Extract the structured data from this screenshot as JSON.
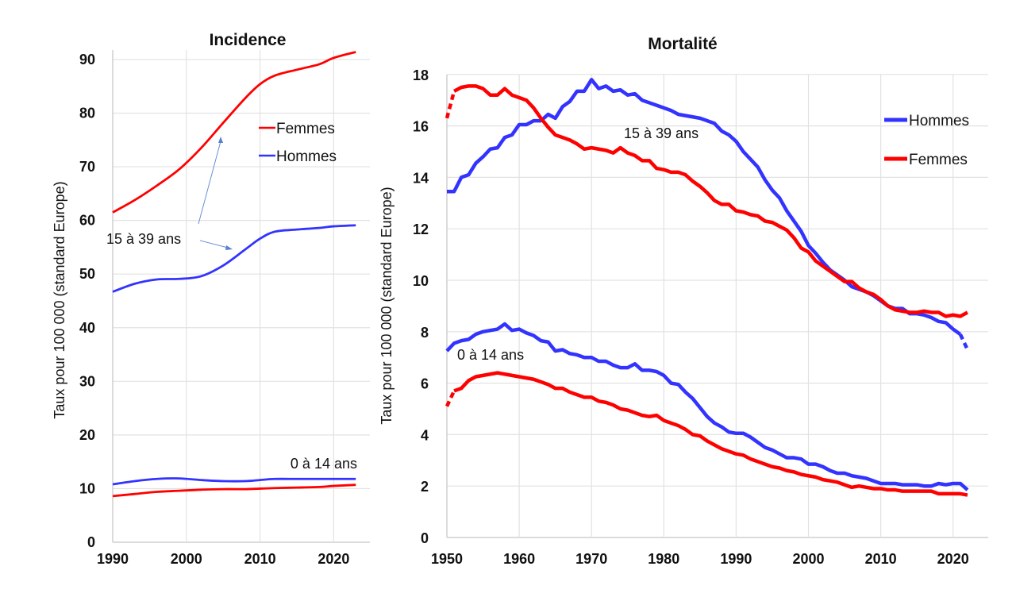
{
  "chart_data": [
    {
      "type": "line",
      "title": "Incidence",
      "xlabel": "",
      "ylabel": "Taux pour 100 000 (standard Europe)",
      "xlim": [
        1990,
        2025
      ],
      "ylim": [
        0,
        90
      ],
      "x_ticks": [
        "1990",
        "2000",
        "2010",
        "2020"
      ],
      "y_ticks": [
        "0",
        "10",
        "20",
        "30",
        "40",
        "50",
        "60",
        "70",
        "80",
        "90"
      ],
      "grid": true,
      "legend": {
        "placement": "top-center",
        "entries": [
          {
            "label": "Femmes",
            "color": "#ff0000"
          },
          {
            "label": "Hommes",
            "color": "#3333ff"
          }
        ]
      },
      "annotations": [
        "15 à 39 ans",
        "0 à 14 ans"
      ],
      "x": [
        1990,
        1993,
        1996,
        1999,
        2002,
        2005,
        2008,
        2010,
        2012,
        2015,
        2018,
        2020,
        2023
      ],
      "series": [
        {
          "name": "Femmes 15 à 39 ans",
          "color": "#ff0000",
          "values": [
            61.5,
            63.8,
            66.5,
            69.5,
            73.5,
            78.2,
            82.8,
            85.4,
            87.0,
            88.1,
            89.1,
            90.3,
            91.4
          ]
        },
        {
          "name": "Hommes 15 à 39 ans",
          "color": "#3333ff",
          "values": [
            46.7,
            48.2,
            49.0,
            49.1,
            49.6,
            51.6,
            54.6,
            56.6,
            57.9,
            58.3,
            58.6,
            58.9,
            59.1
          ]
        },
        {
          "name": "Hommes 0 à 14 ans",
          "color": "#3333ff",
          "values": [
            10.8,
            11.4,
            11.8,
            11.9,
            11.6,
            11.4,
            11.4,
            11.6,
            11.8,
            11.8,
            11.8,
            11.8,
            11.8
          ]
        },
        {
          "name": "Femmes 0 à 14 ans",
          "color": "#ff0000",
          "values": [
            8.6,
            9.0,
            9.4,
            9.6,
            9.8,
            9.9,
            9.9,
            10.0,
            10.1,
            10.2,
            10.3,
            10.5,
            10.7
          ]
        }
      ]
    },
    {
      "type": "line",
      "title": "Mortalité",
      "xlabel": "",
      "ylabel": "Taux pour 100 000 (standard Europe)",
      "xlim": [
        1950,
        2025
      ],
      "ylim": [
        0,
        18
      ],
      "x_ticks": [
        "1950",
        "1960",
        "1970",
        "1980",
        "1990",
        "2000",
        "2010",
        "2020"
      ],
      "y_ticks": [
        "0",
        "2",
        "4",
        "6",
        "8",
        "10",
        "12",
        "14",
        "16",
        "18"
      ],
      "grid": true,
      "legend": {
        "placement": "top-right",
        "entries": [
          {
            "label": "Hommes",
            "color": "#3333ff"
          },
          {
            "label": "Femmes",
            "color": "#ff0000"
          }
        ]
      },
      "annotations": [
        "15 à 39 ans",
        "0 à 14 ans"
      ],
      "x_start": 1950,
      "series": [
        {
          "name": "Hommes 15 à 39 ans",
          "color": "#3333ff",
          "dashed_last": true,
          "values": [
            13.45,
            13.45,
            14.0,
            14.1,
            14.55,
            14.8,
            15.1,
            15.15,
            15.55,
            15.65,
            16.05,
            16.05,
            16.2,
            16.2,
            16.45,
            16.3,
            16.75,
            16.95,
            17.35,
            17.35,
            17.8,
            17.45,
            17.55,
            17.35,
            17.4,
            17.2,
            17.25,
            17.0,
            16.9,
            16.8,
            16.7,
            16.6,
            16.45,
            16.4,
            16.35,
            16.3,
            16.2,
            16.1,
            15.8,
            15.65,
            15.4,
            15.0,
            14.7,
            14.4,
            13.9,
            13.5,
            13.2,
            12.7,
            12.3,
            11.9,
            11.35,
            11.05,
            10.7,
            10.4,
            10.2,
            10.0,
            9.75,
            9.65,
            9.55,
            9.4,
            9.2,
            9.0,
            8.9,
            8.9,
            8.7,
            8.7,
            8.65,
            8.55,
            8.4,
            8.35,
            8.1,
            7.9,
            7.3
          ]
        },
        {
          "name": "Femmes 15 à 39 ans",
          "color": "#ff0000",
          "dashed_first": true,
          "values": [
            16.3,
            17.35,
            17.5,
            17.55,
            17.55,
            17.45,
            17.2,
            17.2,
            17.45,
            17.2,
            17.1,
            17.0,
            16.7,
            16.3,
            15.95,
            15.65,
            15.55,
            15.45,
            15.3,
            15.1,
            15.15,
            15.1,
            15.05,
            14.95,
            15.15,
            14.95,
            14.85,
            14.65,
            14.65,
            14.35,
            14.3,
            14.2,
            14.2,
            14.1,
            13.85,
            13.65,
            13.4,
            13.1,
            12.95,
            12.95,
            12.7,
            12.65,
            12.55,
            12.5,
            12.3,
            12.25,
            12.1,
            11.95,
            11.65,
            11.25,
            11.1,
            10.75,
            10.55,
            10.35,
            10.15,
            9.95,
            9.95,
            9.7,
            9.55,
            9.45,
            9.25,
            9.0,
            8.85,
            8.8,
            8.75,
            8.75,
            8.8,
            8.75,
            8.75,
            8.6,
            8.65,
            8.6,
            8.75
          ]
        },
        {
          "name": "Hommes 0 à 14 ans",
          "color": "#3333ff",
          "values": [
            7.25,
            7.55,
            7.65,
            7.7,
            7.9,
            8.0,
            8.05,
            8.1,
            8.3,
            8.05,
            8.1,
            7.95,
            7.85,
            7.65,
            7.6,
            7.25,
            7.3,
            7.15,
            7.1,
            7.0,
            7.0,
            6.85,
            6.85,
            6.7,
            6.6,
            6.6,
            6.75,
            6.5,
            6.5,
            6.45,
            6.3,
            6.0,
            5.95,
            5.65,
            5.4,
            5.05,
            4.7,
            4.45,
            4.3,
            4.1,
            4.05,
            4.05,
            3.9,
            3.7,
            3.5,
            3.4,
            3.25,
            3.1,
            3.1,
            3.05,
            2.85,
            2.85,
            2.75,
            2.6,
            2.5,
            2.5,
            2.4,
            2.35,
            2.3,
            2.2,
            2.1,
            2.1,
            2.1,
            2.05,
            2.05,
            2.05,
            2.0,
            2.0,
            2.1,
            2.05,
            2.1,
            2.1,
            1.85
          ]
        },
        {
          "name": "Femmes 0 à 14 ans",
          "color": "#ff0000",
          "dashed_first": true,
          "values": [
            5.1,
            5.7,
            5.8,
            6.1,
            6.25,
            6.3,
            6.35,
            6.4,
            6.35,
            6.3,
            6.25,
            6.2,
            6.15,
            6.05,
            5.95,
            5.8,
            5.8,
            5.65,
            5.55,
            5.45,
            5.45,
            5.3,
            5.25,
            5.15,
            5.0,
            4.95,
            4.85,
            4.75,
            4.7,
            4.75,
            4.55,
            4.45,
            4.35,
            4.2,
            4.0,
            3.95,
            3.75,
            3.6,
            3.45,
            3.35,
            3.25,
            3.2,
            3.05,
            2.95,
            2.85,
            2.75,
            2.7,
            2.6,
            2.55,
            2.45,
            2.4,
            2.35,
            2.25,
            2.2,
            2.15,
            2.05,
            1.95,
            2.0,
            1.95,
            1.9,
            1.9,
            1.85,
            1.85,
            1.8,
            1.8,
            1.8,
            1.8,
            1.8,
            1.7,
            1.7,
            1.7,
            1.7,
            1.65
          ]
        }
      ]
    }
  ]
}
